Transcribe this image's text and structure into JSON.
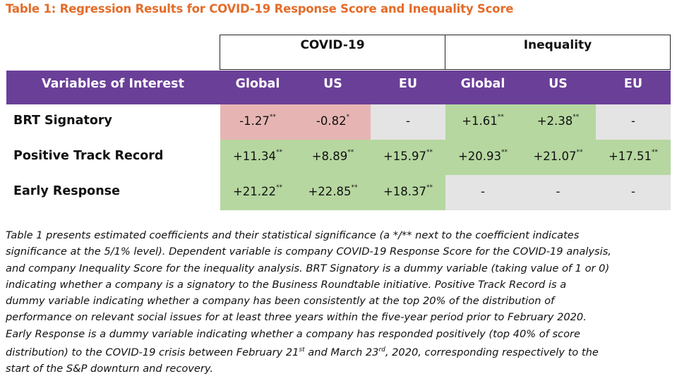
{
  "title": "Table 1: Regression Results for COVID-19 Response Score and Inequality Score",
  "groups": [
    "COVID-19",
    "Inequality"
  ],
  "columns": [
    "Variables of Interest",
    "Global",
    "US",
    "EU",
    "Global",
    "US",
    "EU"
  ],
  "rows": [
    {
      "label": "BRT Signatory",
      "values": [
        "-1.27",
        "-0.82",
        "-",
        "+1.61",
        "+2.38",
        "-"
      ],
      "sig": [
        "**",
        "*",
        "",
        "**",
        "**",
        ""
      ],
      "status": [
        "negative",
        "negative",
        "none",
        "positive",
        "positive",
        "none"
      ]
    },
    {
      "label": "Positive Track Record",
      "values": [
        "+11.34",
        "+8.89",
        "+15.97",
        "+20.93",
        "+21.07",
        "+17.51"
      ],
      "sig": [
        "**",
        "**",
        "**",
        "**",
        "**",
        "**"
      ],
      "status": [
        "positive",
        "positive",
        "positive",
        "positive",
        "positive",
        "positive"
      ]
    },
    {
      "label": "Early Response",
      "values": [
        "+21.22",
        "+22.85",
        "+18.37",
        "-",
        "-",
        "-"
      ],
      "sig": [
        "**",
        "**",
        "**",
        "",
        "",
        ""
      ],
      "status": [
        "positive",
        "positive",
        "positive",
        "none",
        "none",
        "none"
      ]
    }
  ],
  "colors": {
    "title": "#e46c2a",
    "header": "#6a3f98",
    "positive": "#b6d7a0",
    "negative": "#e6b5b3",
    "none": "#e4e4e4"
  },
  "note": {
    "lines": [
      "Table 1 presents estimated coefficients and their statistical significance (a */** next to the coefficient indicates",
      "significance at the 5/1% level). Dependent variable is company COVID-19 Response Score for the COVID-19 analysis,",
      "and company Inequality Score for the inequality analysis. BRT Signatory is a dummy variable (taking value of 1 or 0)",
      "indicating whether a company is a signatory to the Business Roundtable initiative. Positive Track Record is a",
      "dummy variable indicating whether a company has been consistently at the top 20% of the distribution of",
      "performance on relevant social issues for at least three years within the five-year period prior to February 2020.",
      "Early Response is a dummy variable indicating whether a company has responded positively (top 40% of score"
    ],
    "line8_a": "distribution) to the COVID-19 crisis between February 21",
    "line8_sup1": "st",
    "line8_b": " and March 23",
    "line8_sup2": "rd",
    "line8_c": ", 2020, corresponding respectively to the",
    "line9": "start of the S&P downturn and recovery."
  }
}
